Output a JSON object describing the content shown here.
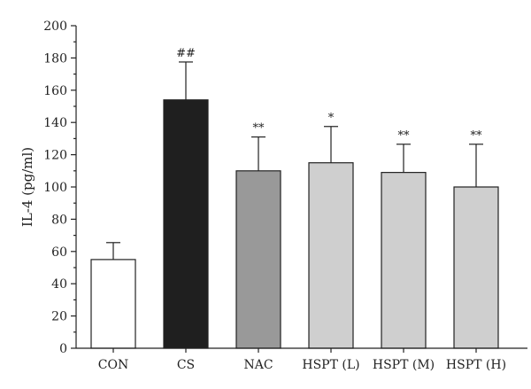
{
  "chart_data": {
    "type": "bar",
    "title": "",
    "xlabel": "",
    "ylabel": "IL-4 (pg/ml)",
    "ylim": [
      0,
      200
    ],
    "yticks": [
      0,
      20,
      40,
      60,
      80,
      100,
      120,
      140,
      160,
      180,
      200
    ],
    "grid": false,
    "categories": [
      "CON",
      "CS",
      "NAC",
      "HSPT (L)",
      "HSPT (M)",
      "HSPT (H)"
    ],
    "values": [
      55,
      154,
      110,
      115,
      109,
      100
    ],
    "errors": [
      10.5,
      23.5,
      21,
      22.5,
      17.5,
      26.5
    ],
    "significance": [
      "",
      "##",
      "**",
      "*",
      "**",
      "**"
    ],
    "bar_colors": [
      "#ffffff",
      "#1f1f1f",
      "#999999",
      "#cfcfcf",
      "#cfcfcf",
      "#cfcfcf"
    ]
  }
}
